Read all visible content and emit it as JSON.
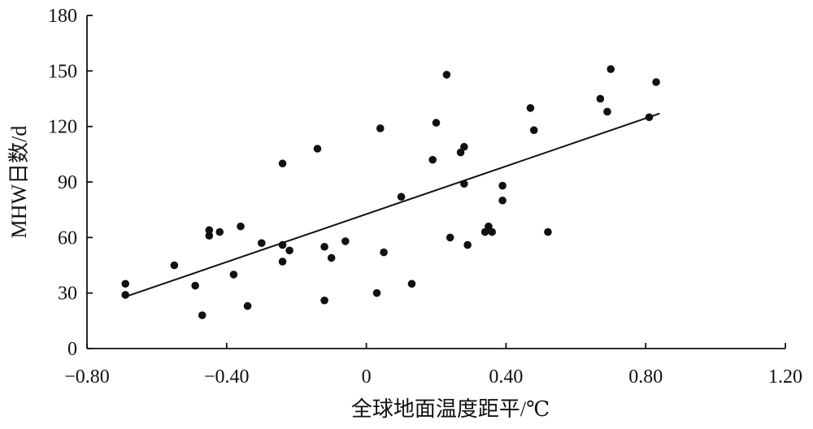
{
  "chart_data": {
    "type": "scatter",
    "title": "",
    "xlabel": "全球地面温度距平/℃",
    "ylabel": "MHW日数/d",
    "xlim": [
      -0.8,
      1.2
    ],
    "ylim": [
      0,
      180
    ],
    "x_ticks": [
      "−0.80",
      "−0.40",
      "0",
      "0.40",
      "0.80",
      "1.20"
    ],
    "y_ticks": [
      "0",
      "30",
      "60",
      "90",
      "120",
      "150",
      "180"
    ],
    "grid": false,
    "legend": "none",
    "colors": {
      "points": "#111111",
      "trendline": "#111111",
      "axes": "#111111"
    },
    "points": [
      [
        -0.69,
        35
      ],
      [
        -0.69,
        29
      ],
      [
        -0.55,
        45
      ],
      [
        -0.49,
        34
      ],
      [
        -0.47,
        18
      ],
      [
        -0.45,
        64
      ],
      [
        -0.45,
        61
      ],
      [
        -0.42,
        63
      ],
      [
        -0.38,
        40
      ],
      [
        -0.36,
        66
      ],
      [
        -0.34,
        23
      ],
      [
        -0.3,
        57
      ],
      [
        -0.24,
        100
      ],
      [
        -0.24,
        56
      ],
      [
        -0.24,
        47
      ],
      [
        -0.22,
        53
      ],
      [
        -0.14,
        108
      ],
      [
        -0.12,
        26
      ],
      [
        -0.12,
        55
      ],
      [
        -0.1,
        49
      ],
      [
        -0.06,
        58
      ],
      [
        0.03,
        30
      ],
      [
        0.04,
        119
      ],
      [
        0.05,
        52
      ],
      [
        0.1,
        82
      ],
      [
        0.13,
        35
      ],
      [
        0.19,
        102
      ],
      [
        0.2,
        122
      ],
      [
        0.23,
        148
      ],
      [
        0.24,
        60
      ],
      [
        0.27,
        106
      ],
      [
        0.28,
        89
      ],
      [
        0.28,
        109
      ],
      [
        0.29,
        56
      ],
      [
        0.34,
        63
      ],
      [
        0.35,
        66
      ],
      [
        0.36,
        63
      ],
      [
        0.39,
        88
      ],
      [
        0.39,
        80
      ],
      [
        0.47,
        130
      ],
      [
        0.48,
        118
      ],
      [
        0.52,
        63
      ],
      [
        0.67,
        135
      ],
      [
        0.69,
        128
      ],
      [
        0.7,
        151
      ],
      [
        0.81,
        125
      ],
      [
        0.83,
        144
      ]
    ],
    "trendline": {
      "x": [
        -0.69,
        0.84
      ],
      "y": [
        28,
        127
      ]
    }
  }
}
